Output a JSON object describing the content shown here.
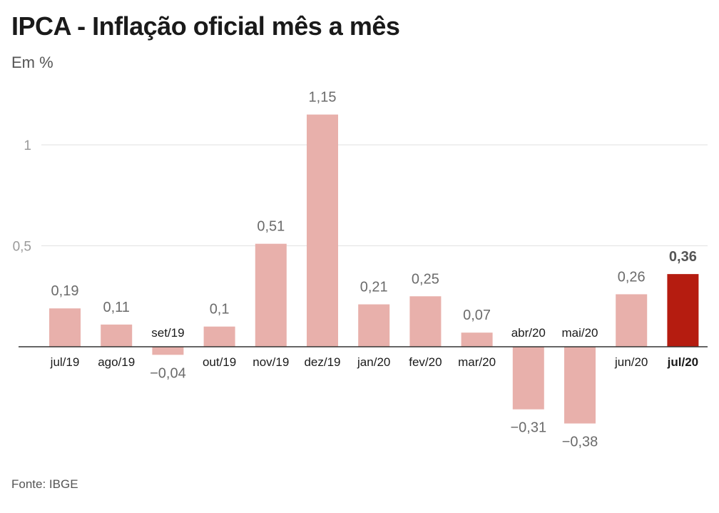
{
  "header": {
    "title": "IPCA - Inflação oficial mês a mês",
    "subtitle": "Em %"
  },
  "footer": {
    "source": "Fonte: IBGE"
  },
  "colors": {
    "bar": "#e8b0ab",
    "highlight": "#b51c10",
    "grid": "#e2e2e2",
    "axis": "#333333"
  },
  "chart_data": {
    "type": "bar",
    "categories": [
      "jul/19",
      "ago/19",
      "set/19",
      "out/19",
      "nov/19",
      "dez/19",
      "jan/20",
      "fev/20",
      "mar/20",
      "abr/20",
      "mai/20",
      "jun/20",
      "jul/20"
    ],
    "values": [
      0.19,
      0.11,
      -0.04,
      0.1,
      0.51,
      1.15,
      0.21,
      0.25,
      0.07,
      -0.31,
      -0.38,
      0.26,
      0.36
    ],
    "value_labels": [
      "0,19",
      "0,11",
      "−0,04",
      "0,1",
      "0,51",
      "1,15",
      "0,21",
      "0,25",
      "0,07",
      "−0,31",
      "−0,38",
      "0,26",
      "0,36"
    ],
    "highlight_index": 12,
    "ytick_values": [
      0.5,
      1
    ],
    "ytick_labels": [
      "0,5",
      "1"
    ],
    "ylim": [
      -0.45,
      1.25
    ],
    "grid": true,
    "title": "IPCA - Inflação oficial mês a mês",
    "ylabel": "Em %",
    "xlabel": ""
  }
}
